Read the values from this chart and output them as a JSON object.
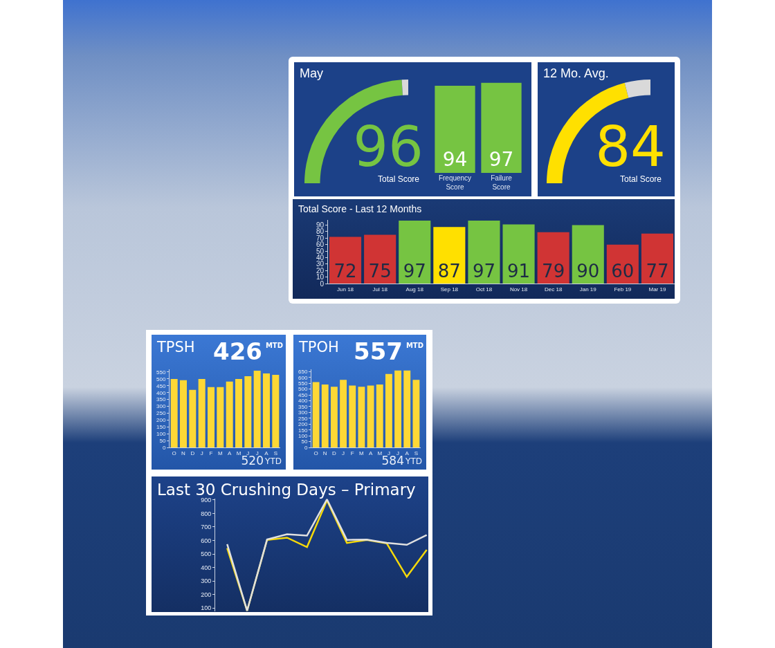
{
  "chart_data": [
    {
      "type": "donut",
      "title": "May",
      "categories": [
        "Total Score",
        null
      ],
      "values": [
        96,
        4
      ],
      "colors": [
        "#76c442",
        "#d9d9d9"
      ],
      "value_labels": [
        "96",
        null
      ]
    },
    {
      "type": "bar",
      "categories": [
        "Frequency Score",
        "Failure Score"
      ],
      "values": [
        94,
        97
      ],
      "color": "#76c442",
      "tick_labels": "x",
      "data_labels": true
    },
    {
      "type": "donut",
      "title": "12 Mo. Avg.",
      "categories": [
        "Total Score",
        null
      ],
      "values": [
        84,
        16
      ],
      "colors": [
        "#ffe000",
        "#d9d9d9"
      ],
      "value_labels": [
        "84",
        null
      ]
    },
    {
      "type": "bar",
      "title": "Total Score - Last 12 Months",
      "categories": [
        "Jun 18",
        "Jul 18",
        "Aug 18",
        "Sep 18",
        "Oct 18",
        "Nov 18",
        "Dec 18",
        "Jan 19",
        "Feb 19",
        "Mar 19"
      ],
      "values": [
        72,
        75,
        97,
        87,
        97,
        91,
        79,
        90,
        60,
        77
      ],
      "colors": [
        "#d03434",
        "#d03434",
        "#76c442",
        "#ffe000",
        "#76c442",
        "#76c442",
        "#d03434",
        "#76c442",
        "#d03434",
        "#d03434"
      ],
      "ylim": [
        0,
        98
      ],
      "yticks": [
        0,
        10,
        20,
        30,
        40,
        50,
        60,
        70,
        80,
        90
      ],
      "data_labels": true
    },
    {
      "type": "bar",
      "title": "TPSH",
      "categories": [
        "O",
        "N",
        "D",
        "J",
        "F",
        "M",
        "A",
        "M",
        "J",
        "J",
        "A",
        "S"
      ],
      "values": [
        500,
        490,
        420,
        500,
        440,
        440,
        480,
        500,
        520,
        560,
        540,
        530
      ],
      "color": "#fdd835",
      "ylim": [
        0,
        570
      ],
      "yticks": [
        0,
        50,
        100,
        150,
        200,
        250,
        300,
        350,
        400,
        450,
        500,
        550
      ],
      "annotations": [
        "426",
        "MTD",
        "520",
        "YTD"
      ]
    },
    {
      "type": "bar",
      "title": "TPOH",
      "categories": [
        "O",
        "N",
        "D",
        "J",
        "F",
        "M",
        "A",
        "M",
        "J",
        "J",
        "A",
        "S"
      ],
      "values": [
        560,
        540,
        520,
        580,
        530,
        520,
        530,
        540,
        630,
        660,
        660,
        580
      ],
      "color": "#fdd835",
      "ylim": [
        0,
        670
      ],
      "yticks": [
        0,
        50,
        100,
        150,
        200,
        250,
        300,
        350,
        400,
        450,
        500,
        550,
        600,
        650
      ],
      "annotations": [
        "557",
        "MTD",
        "584",
        "YTD"
      ]
    },
    {
      "type": "line",
      "title": "Last 30 Crushing Days – Primary",
      "categories": [
        null,
        null,
        null,
        null,
        null,
        null,
        null,
        null,
        null,
        null,
        null
      ],
      "series": [
        {
          "color": "#f5d90a",
          "values": [
            543,
            80,
            604,
            621,
            551,
            897,
            582,
            604,
            578,
            331,
            531
          ]
        },
        {
          "color": "#e0e0e0",
          "values": [
            573,
            80,
            607,
            646,
            636,
            905,
            604,
            607,
            582,
            568,
            641
          ]
        }
      ],
      "ylim": [
        75,
        910
      ],
      "yticks": [
        100,
        200,
        300,
        400,
        500,
        600,
        700,
        800,
        900
      ]
    }
  ]
}
